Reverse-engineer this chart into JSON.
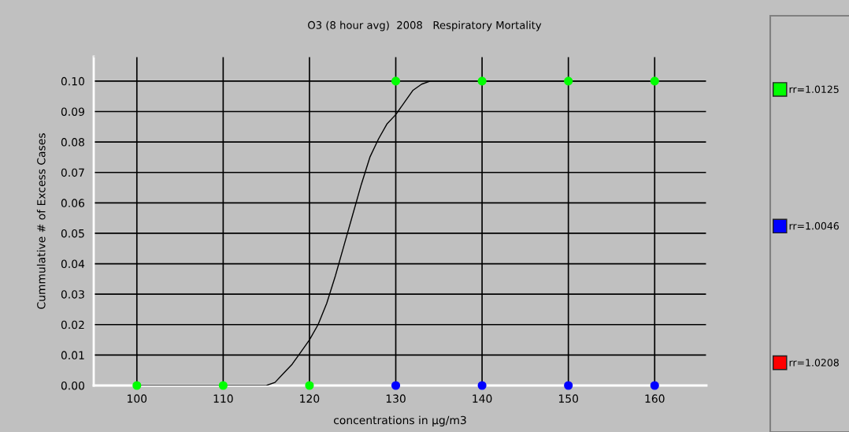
{
  "chart_data": {
    "type": "scatter",
    "title": "O3 (8 hour avg)  2008   Respiratory Mortality",
    "xlabel": "concentrations in µg/m3",
    "ylabel": "Cummulative # of Excess Cases",
    "series": [
      {
        "name": "rr=1.0125",
        "color": "#00ff00",
        "x": [
          100,
          110,
          120,
          130,
          140,
          150,
          160
        ],
        "values": [
          0,
          0,
          0,
          0.1,
          0.1,
          0.1,
          0.1
        ]
      },
      {
        "name": "rr=1.0046",
        "color": "#0000ff",
        "x": [
          130,
          140,
          150,
          160
        ],
        "values": [
          0,
          0,
          0,
          0
        ]
      },
      {
        "name": "rr=1.0208",
        "color": "#ff0000"
      },
      {
        "type": "line",
        "color": "#000000",
        "marker": "none",
        "x": [
          100,
          115,
          116,
          117,
          118,
          119,
          120,
          121,
          122,
          123,
          124,
          125,
          126,
          127,
          128,
          129,
          130,
          131,
          132,
          133,
          134,
          135,
          160
        ],
        "values": [
          0,
          0,
          0.001,
          0.004,
          0.007,
          0.011,
          0.015,
          0.02,
          0.027,
          0.036,
          0.046,
          0.056,
          0.066,
          0.075,
          0.081,
          0.086,
          0.089,
          0.093,
          0.097,
          0.099,
          0.1,
          0.1,
          0.1
        ]
      }
    ],
    "marker": "circle",
    "grid": true,
    "legend": "right",
    "xlim": [
      95,
      166
    ],
    "ylim": [
      0,
      0.108
    ],
    "xticks": [
      100,
      110,
      120,
      130,
      140,
      150,
      160
    ],
    "yticks": [
      {
        "value": 0,
        "label": "0.00"
      },
      {
        "value": 0.01,
        "label": "0.01"
      },
      {
        "value": 0.02,
        "label": "0.02"
      },
      {
        "value": 0.03,
        "label": "0.03"
      },
      {
        "value": 0.04,
        "label": "0.04"
      },
      {
        "value": 0.05,
        "label": "0.05"
      },
      {
        "value": 0.06,
        "label": "0.06"
      },
      {
        "value": 0.07,
        "label": "0.07"
      },
      {
        "value": 0.08,
        "label": "0.08"
      },
      {
        "value": 0.09,
        "label": "0.09"
      },
      {
        "value": 0.1,
        "label": "0.10"
      }
    ]
  }
}
